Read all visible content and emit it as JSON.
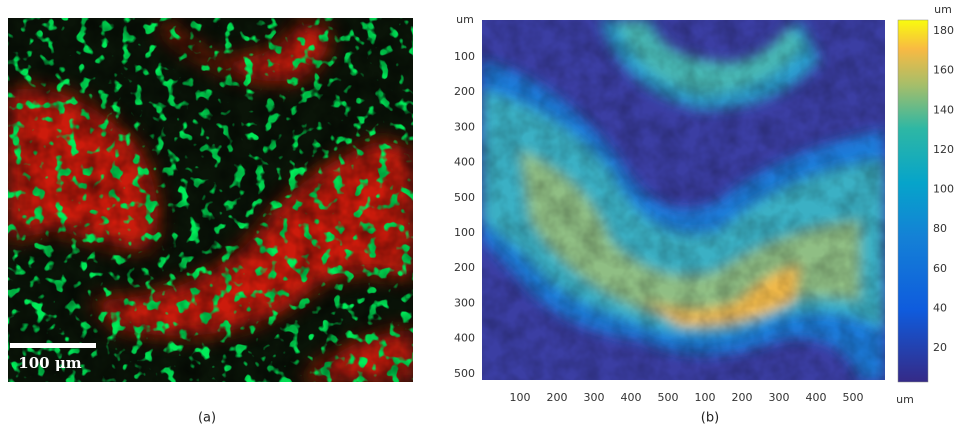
{
  "panel_a": {
    "scale_bar": "100 μm",
    "caption": "(a)"
  },
  "panel_b": {
    "y_unit": "um",
    "y_labels": [
      100,
      200,
      300,
      400,
      500,
      100,
      200,
      300,
      400,
      500
    ],
    "x_labels": [
      100,
      200,
      300,
      400,
      500,
      100,
      200,
      300,
      400,
      500
    ],
    "x_unit": "um",
    "colorbar_unit": "um",
    "colorbar_labels": [
      180,
      160,
      140,
      120,
      100,
      80,
      60,
      40,
      20
    ],
    "caption": "(b)"
  }
}
